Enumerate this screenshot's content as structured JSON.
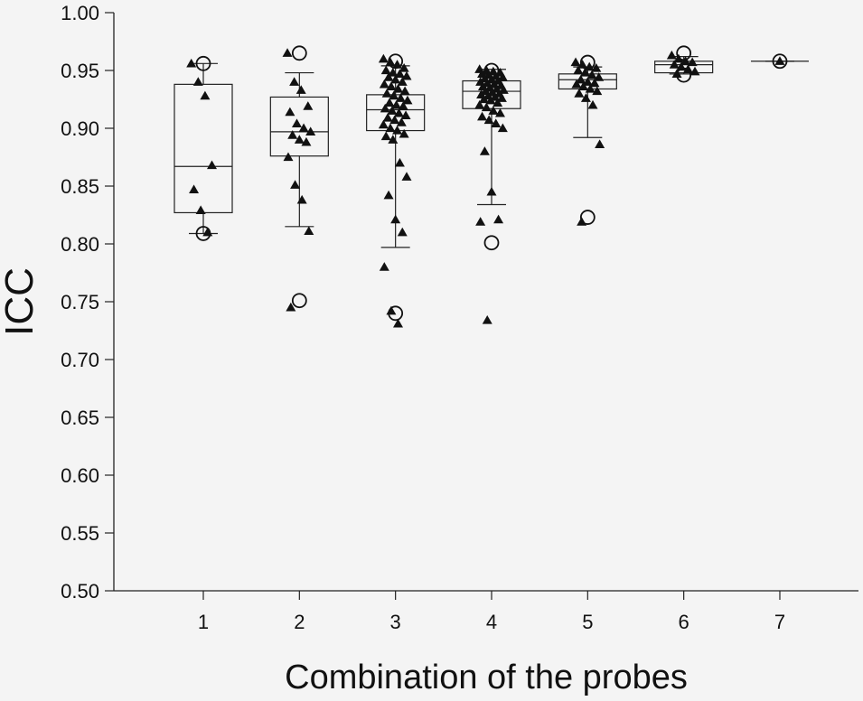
{
  "chart_data": {
    "type": "box",
    "xlabel": "Combination of the probes",
    "ylabel": "ICC",
    "ylim": [
      0.5,
      1.0
    ],
    "y_ticks": [
      "0.50",
      "0.55",
      "0.60",
      "0.65",
      "0.70",
      "0.75",
      "0.80",
      "0.85",
      "0.90",
      "0.95",
      "1.00"
    ],
    "categories": [
      "1",
      "2",
      "3",
      "4",
      "5",
      "6",
      "7"
    ],
    "boxes": [
      {
        "category": "1",
        "whisker_low": 0.809,
        "q1": 0.827,
        "median": 0.867,
        "q3": 0.938,
        "whisker_high": 0.956,
        "outliers": [
          0.809,
          0.956
        ],
        "points": [
          0.956,
          0.94,
          0.928,
          0.868,
          0.847,
          0.829,
          0.81
        ]
      },
      {
        "category": "2",
        "whisker_low": 0.815,
        "q1": 0.876,
        "median": 0.897,
        "q3": 0.927,
        "whisker_high": 0.948,
        "outliers": [
          0.965,
          0.751
        ],
        "points": [
          0.965,
          0.94,
          0.933,
          0.919,
          0.914,
          0.904,
          0.9,
          0.897,
          0.894,
          0.89,
          0.888,
          0.875,
          0.851,
          0.838,
          0.811,
          0.745
        ]
      },
      {
        "category": "3",
        "whisker_low": 0.797,
        "q1": 0.898,
        "median": 0.916,
        "q3": 0.929,
        "whisker_high": 0.954,
        "outliers": [
          0.958,
          0.74
        ],
        "points": [
          0.96,
          0.957,
          0.955,
          0.952,
          0.95,
          0.948,
          0.947,
          0.945,
          0.944,
          0.942,
          0.94,
          0.938,
          0.936,
          0.934,
          0.932,
          0.93,
          0.928,
          0.926,
          0.924,
          0.922,
          0.92,
          0.919,
          0.917,
          0.915,
          0.913,
          0.911,
          0.909,
          0.907,
          0.905,
          0.903,
          0.9,
          0.898,
          0.895,
          0.893,
          0.89,
          0.87,
          0.858,
          0.842,
          0.821,
          0.81,
          0.78,
          0.742,
          0.731
        ]
      },
      {
        "category": "4",
        "whisker_low": 0.834,
        "q1": 0.917,
        "median": 0.932,
        "q3": 0.941,
        "whisker_high": 0.951,
        "outliers": [
          0.95,
          0.801
        ],
        "points": [
          0.951,
          0.95,
          0.949,
          0.948,
          0.947,
          0.946,
          0.945,
          0.944,
          0.943,
          0.942,
          0.941,
          0.94,
          0.939,
          0.938,
          0.937,
          0.936,
          0.935,
          0.934,
          0.933,
          0.932,
          0.931,
          0.93,
          0.929,
          0.928,
          0.927,
          0.926,
          0.925,
          0.924,
          0.922,
          0.92,
          0.918,
          0.915,
          0.913,
          0.91,
          0.907,
          0.904,
          0.9,
          0.88,
          0.845,
          0.821,
          0.819,
          0.734
        ]
      },
      {
        "category": "5",
        "whisker_low": 0.892,
        "q1": 0.934,
        "median": 0.942,
        "q3": 0.947,
        "whisker_high": 0.953,
        "outliers": [
          0.957,
          0.823
        ],
        "points": [
          0.957,
          0.955,
          0.953,
          0.952,
          0.95,
          0.948,
          0.946,
          0.944,
          0.942,
          0.94,
          0.939,
          0.938,
          0.936,
          0.934,
          0.932,
          0.93,
          0.926,
          0.92,
          0.886,
          0.819
        ]
      },
      {
        "category": "6",
        "whisker_low": 0.947,
        "q1": 0.948,
        "median": 0.955,
        "q3": 0.958,
        "whisker_high": 0.962,
        "outliers": [
          0.965,
          0.946
        ],
        "points": [
          0.963,
          0.96,
          0.958,
          0.957,
          0.955,
          0.953,
          0.951,
          0.949,
          0.947
        ]
      },
      {
        "category": "7",
        "whisker_low": 0.958,
        "q1": 0.958,
        "median": 0.958,
        "q3": 0.958,
        "whisker_high": 0.958,
        "outliers": [
          0.958
        ],
        "points": [
          0.958
        ]
      }
    ],
    "grid": false,
    "legend": "none"
  }
}
